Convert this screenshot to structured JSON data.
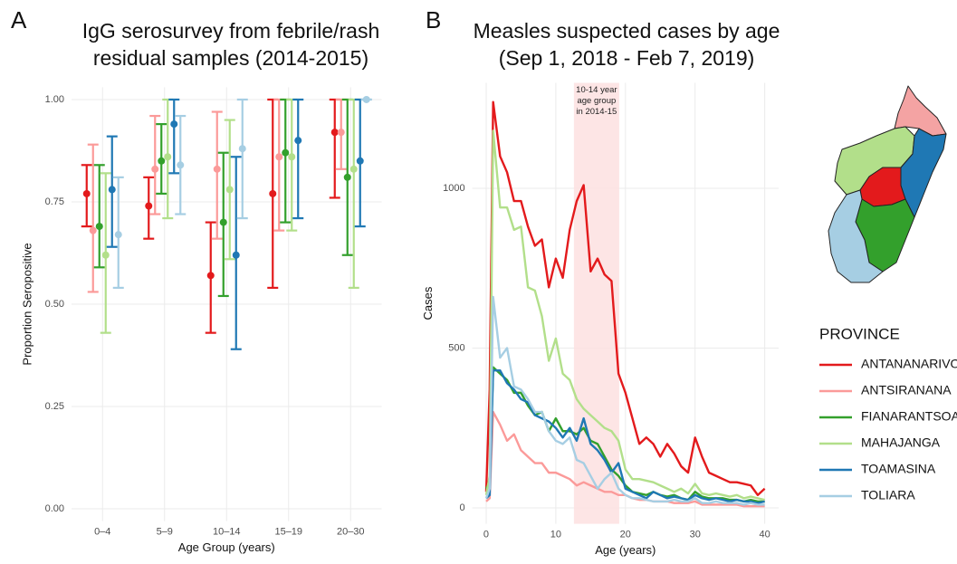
{
  "chart_data": [
    {
      "type": "pointrange",
      "panel": "A",
      "title": [
        "IgG serosurvey from febrile/rash",
        "residual samples (2014-2015)"
      ],
      "x_label": "Age Group (years)",
      "y_label": "Proportion Seropositive",
      "categories": [
        "0–4",
        "5–9",
        "10–14",
        "15–19",
        "20–30"
      ],
      "ylim": [
        -0.03,
        1.03
      ],
      "yticks": [
        {
          "value": 0,
          "label": "0.00"
        },
        {
          "value": 0.25,
          "label": "0.25"
        },
        {
          "value": 0.5,
          "label": "0.50"
        },
        {
          "value": 0.75,
          "label": "0.75"
        },
        {
          "value": 1,
          "label": "1.00"
        }
      ],
      "grid": true,
      "series": [
        {
          "name": "ANTANANARIVO",
          "color": "#e31a1c",
          "values": [
            0.77,
            0.74,
            0.57,
            0.77,
            0.92
          ],
          "lower": [
            0.69,
            0.66,
            0.43,
            0.54,
            0.76
          ],
          "upper": [
            0.84,
            0.81,
            0.7,
            1.0,
            1.0
          ]
        },
        {
          "name": "ANTSIRANANA",
          "color": "#fb9a99",
          "values": [
            0.68,
            0.83,
            0.83,
            0.86,
            0.92
          ],
          "lower": [
            0.53,
            0.72,
            0.66,
            0.68,
            0.83
          ],
          "upper": [
            0.89,
            0.96,
            0.97,
            1.0,
            1.0
          ]
        },
        {
          "name": "FIANARANTSOA",
          "color": "#33a02c",
          "values": [
            0.69,
            0.85,
            0.7,
            0.87,
            0.81
          ],
          "lower": [
            0.59,
            0.77,
            0.52,
            0.7,
            0.62
          ],
          "upper": [
            0.84,
            0.94,
            0.87,
            1.0,
            1.0
          ]
        },
        {
          "name": "MAHAJANGA",
          "color": "#b2df8a",
          "values": [
            0.62,
            0.86,
            0.78,
            0.86,
            0.83
          ],
          "lower": [
            0.43,
            0.71,
            0.61,
            0.68,
            0.54
          ],
          "upper": [
            0.82,
            1.0,
            0.95,
            1.0,
            1.0
          ]
        },
        {
          "name": "TOAMASINA",
          "color": "#1f78b4",
          "values": [
            0.78,
            0.94,
            0.62,
            0.9,
            0.85
          ],
          "lower": [
            0.64,
            0.82,
            0.39,
            0.71,
            0.69
          ],
          "upper": [
            0.91,
            1.0,
            0.86,
            1.0,
            1.0
          ]
        },
        {
          "name": "TOLIARA",
          "color": "#a6cee3",
          "values": [
            0.67,
            0.84,
            0.88,
            null,
            1.0
          ],
          "lower": [
            0.54,
            0.72,
            0.71,
            null,
            1.0
          ],
          "upper": [
            0.81,
            0.96,
            1.0,
            null,
            1.0
          ]
        }
      ]
    },
    {
      "type": "line",
      "panel": "B",
      "title": [
        "Measles suspected cases by age",
        "(Sep 1, 2018 - Feb 7, 2019)"
      ],
      "x_label": "Age (years)",
      "y_label": "Cases",
      "annotation": [
        "10-14 year",
        "age group",
        "in 2014-15"
      ],
      "shade": [
        12.6,
        19.1
      ],
      "shade_color": "#fde0e0",
      "legend_title": "PROVINCE",
      "xlim": [
        -2,
        42
      ],
      "xticks": [
        0,
        10,
        20,
        30,
        40
      ],
      "ylim": [
        -50,
        1330
      ],
      "yticks": [
        0,
        500,
        1000
      ],
      "grid": true,
      "x": [
        0,
        0.5,
        1,
        2,
        3,
        4,
        5,
        6,
        7,
        8,
        9,
        10,
        11,
        12,
        13,
        14,
        15,
        16,
        17,
        18,
        19,
        20,
        21,
        22,
        23,
        24,
        25,
        26,
        27,
        28,
        29,
        30,
        31,
        32,
        33,
        34,
        35,
        36,
        37,
        38,
        39,
        40
      ],
      "series": [
        {
          "name": "ANTANANARIVO",
          "color": "#e31a1c",
          "values": [
            50,
            370,
            1270,
            1100,
            1050,
            960,
            960,
            880,
            820,
            840,
            690,
            780,
            720,
            870,
            960,
            1010,
            740,
            780,
            730,
            710,
            420,
            360,
            280,
            200,
            220,
            200,
            160,
            200,
            170,
            130,
            110,
            220,
            160,
            110,
            100,
            90,
            80,
            80,
            75,
            70,
            40,
            60
          ]
        },
        {
          "name": "ANTSIRANANA",
          "color": "#fb9a99",
          "values": [
            20,
            30,
            300,
            260,
            210,
            230,
            180,
            160,
            140,
            140,
            110,
            110,
            100,
            90,
            70,
            80,
            70,
            60,
            50,
            50,
            40,
            40,
            30,
            25,
            25,
            20,
            20,
            20,
            15,
            15,
            15,
            20,
            10,
            10,
            10,
            10,
            10,
            10,
            5,
            5,
            5,
            5
          ]
        },
        {
          "name": "FIANARANTSOA",
          "color": "#33a02c",
          "values": [
            60,
            80,
            440,
            420,
            400,
            360,
            360,
            320,
            290,
            300,
            240,
            280,
            240,
            240,
            230,
            250,
            210,
            200,
            160,
            120,
            100,
            70,
            50,
            45,
            40,
            50,
            40,
            35,
            40,
            30,
            25,
            50,
            35,
            30,
            30,
            30,
            25,
            25,
            20,
            25,
            20,
            20
          ]
        },
        {
          "name": "MAHAJANGA",
          "color": "#b2df8a",
          "values": [
            40,
            100,
            1180,
            940,
            940,
            870,
            880,
            690,
            680,
            600,
            460,
            530,
            420,
            400,
            340,
            310,
            290,
            270,
            250,
            240,
            210,
            120,
            90,
            90,
            85,
            80,
            70,
            60,
            50,
            60,
            45,
            75,
            45,
            40,
            45,
            40,
            35,
            40,
            30,
            35,
            30,
            25
          ]
        },
        {
          "name": "TOAMASINA",
          "color": "#1f78b4",
          "values": [
            30,
            40,
            430,
            430,
            390,
            370,
            340,
            330,
            290,
            280,
            270,
            250,
            220,
            250,
            210,
            280,
            200,
            180,
            150,
            110,
            140,
            60,
            50,
            40,
            30,
            50,
            40,
            30,
            35,
            30,
            25,
            40,
            30,
            25,
            30,
            25,
            20,
            25,
            20,
            20,
            15,
            20
          ]
        },
        {
          "name": "TOLIARA",
          "color": "#a6cee3",
          "values": [
            30,
            60,
            660,
            470,
            500,
            380,
            370,
            340,
            300,
            300,
            240,
            210,
            200,
            220,
            150,
            140,
            100,
            60,
            90,
            110,
            60,
            40,
            30,
            30,
            25,
            20,
            20,
            20,
            25,
            20,
            20,
            30,
            15,
            15,
            20,
            15,
            15,
            15,
            10,
            15,
            10,
            10
          ]
        }
      ]
    }
  ]
}
